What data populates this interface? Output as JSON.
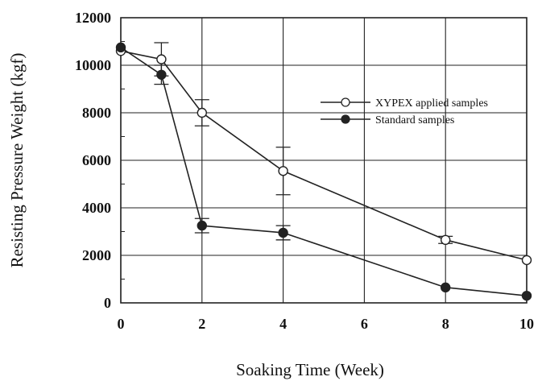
{
  "chart_data": {
    "type": "line",
    "xlabel": "Soaking Time (Week)",
    "ylabel": "Resisting Pressure Weight (kgf)",
    "xlim": [
      0,
      10
    ],
    "ylim": [
      0,
      12000
    ],
    "x_ticks": [
      "0",
      "2",
      "4",
      "6",
      "8",
      "10"
    ],
    "y_ticks": [
      "0",
      "2000",
      "4000",
      "6000",
      "8000",
      "10000",
      "12000"
    ],
    "grid": true,
    "legend_position": "upper-right",
    "series": [
      {
        "name": "XYPEX applied samples",
        "marker": "open-circle",
        "x": [
          0,
          1,
          2,
          4,
          8,
          10
        ],
        "y": [
          10600,
          10250,
          8000,
          5550,
          2650,
          1800
        ],
        "error": [
          0,
          700,
          550,
          1000,
          150,
          0
        ]
      },
      {
        "name": "Standard samples",
        "marker": "filled-circle",
        "x": [
          0,
          1,
          2,
          4,
          8,
          10
        ],
        "y": [
          10750,
          9600,
          3250,
          2950,
          650,
          300
        ],
        "error": [
          0,
          400,
          300,
          300,
          0,
          0
        ]
      }
    ]
  },
  "colors": {
    "line": "#222222",
    "grid": "#222222",
    "background": "#ffffff"
  }
}
